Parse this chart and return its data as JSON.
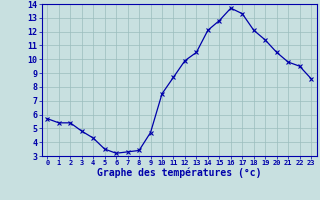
{
  "hours": [
    0,
    1,
    2,
    3,
    4,
    5,
    6,
    7,
    8,
    9,
    10,
    11,
    12,
    13,
    14,
    15,
    16,
    17,
    18,
    19,
    20,
    21,
    22,
    23
  ],
  "temps": [
    5.7,
    5.4,
    5.4,
    4.8,
    4.3,
    3.5,
    3.2,
    3.3,
    3.4,
    4.7,
    7.5,
    8.7,
    9.9,
    10.5,
    12.1,
    12.8,
    13.7,
    13.3,
    12.1,
    11.4,
    10.5,
    9.8,
    9.5,
    8.6
  ],
  "line_color": "#0000aa",
  "marker": "x",
  "bg_color": "#c8e0e0",
  "grid_color": "#9bbdbd",
  "xlabel": "Graphe des températures (°c)",
  "ylim": [
    3,
    14
  ],
  "yticks": [
    3,
    4,
    5,
    6,
    7,
    8,
    9,
    10,
    11,
    12,
    13,
    14
  ],
  "xticks": [
    0,
    1,
    2,
    3,
    4,
    5,
    6,
    7,
    8,
    9,
    10,
    11,
    12,
    13,
    14,
    15,
    16,
    17,
    18,
    19,
    20,
    21,
    22,
    23
  ],
  "xlabel_color": "#0000aa",
  "tick_color": "#0000aa",
  "tick_fontsize": 5,
  "xlabel_fontsize": 7
}
